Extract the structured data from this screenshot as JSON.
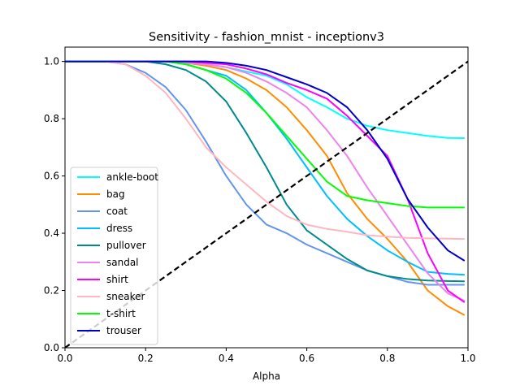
{
  "chart_data": {
    "type": "line",
    "title": "Sensitivity - fashion_mnist - inceptionv3",
    "xlabel": "Alpha",
    "ylabel": "",
    "xlim": [
      0,
      1
    ],
    "ylim": [
      0,
      1.05
    ],
    "xticks": [
      "0.0",
      "0.2",
      "0.4",
      "0.6",
      "0.8",
      "1.0"
    ],
    "yticks": [
      "0.0",
      "0.2",
      "0.4",
      "0.6",
      "0.8",
      "1.0"
    ],
    "grid": false,
    "legend_position": "lower-left",
    "x": [
      0.0,
      0.05,
      0.1,
      0.15,
      0.2,
      0.25,
      0.3,
      0.35,
      0.4,
      0.45,
      0.5,
      0.55,
      0.6,
      0.65,
      0.7,
      0.75,
      0.8,
      0.85,
      0.9,
      0.95,
      0.99
    ],
    "series": [
      {
        "name": "ankle-boot",
        "color": "#00ffff",
        "values": [
          1.0,
          1.0,
          1.0,
          1.0,
          1.0,
          1.0,
          0.995,
          0.99,
          0.98,
          0.965,
          0.95,
          0.92,
          0.875,
          0.84,
          0.8,
          0.775,
          0.76,
          0.75,
          0.74,
          0.733,
          0.732
        ]
      },
      {
        "name": "bag",
        "color": "#ff8c00",
        "values": [
          1.0,
          1.0,
          1.0,
          1.0,
          1.0,
          1.0,
          0.995,
          0.985,
          0.97,
          0.94,
          0.9,
          0.84,
          0.76,
          0.67,
          0.54,
          0.45,
          0.38,
          0.3,
          0.2,
          0.145,
          0.115
        ]
      },
      {
        "name": "coat",
        "color": "#6495ed",
        "values": [
          1.0,
          1.0,
          1.0,
          0.99,
          0.96,
          0.91,
          0.83,
          0.72,
          0.6,
          0.5,
          0.43,
          0.4,
          0.36,
          0.33,
          0.3,
          0.27,
          0.25,
          0.23,
          0.22,
          0.22,
          0.22
        ]
      },
      {
        "name": "dress",
        "color": "#00bfff",
        "values": [
          1.0,
          1.0,
          1.0,
          1.0,
          1.0,
          1.0,
          0.99,
          0.97,
          0.95,
          0.9,
          0.82,
          0.73,
          0.63,
          0.53,
          0.45,
          0.39,
          0.34,
          0.3,
          0.265,
          0.258,
          0.255
        ]
      },
      {
        "name": "pullover",
        "color": "#008b8b",
        "values": [
          1.0,
          1.0,
          1.0,
          1.0,
          1.0,
          0.99,
          0.97,
          0.93,
          0.86,
          0.75,
          0.63,
          0.5,
          0.41,
          0.36,
          0.31,
          0.27,
          0.25,
          0.24,
          0.235,
          0.233,
          0.232
        ]
      },
      {
        "name": "sandal",
        "color": "#ee82ee",
        "values": [
          1.0,
          1.0,
          1.0,
          1.0,
          1.0,
          1.0,
          0.995,
          0.99,
          0.98,
          0.96,
          0.93,
          0.89,
          0.84,
          0.76,
          0.67,
          0.56,
          0.46,
          0.36,
          0.26,
          0.19,
          0.165
        ]
      },
      {
        "name": "shirt",
        "color": "#ff00ff",
        "values": [
          1.0,
          1.0,
          1.0,
          1.0,
          1.0,
          1.0,
          1.0,
          0.995,
          0.99,
          0.975,
          0.955,
          0.925,
          0.9,
          0.87,
          0.81,
          0.74,
          0.67,
          0.52,
          0.33,
          0.2,
          0.16
        ]
      },
      {
        "name": "sneaker",
        "color": "#ffb6c1",
        "values": [
          1.0,
          1.0,
          1.0,
          0.99,
          0.95,
          0.89,
          0.8,
          0.7,
          0.63,
          0.57,
          0.51,
          0.46,
          0.43,
          0.415,
          0.405,
          0.393,
          0.388,
          0.384,
          0.382,
          0.381,
          0.38
        ]
      },
      {
        "name": "t-shirt",
        "color": "#00ff00",
        "values": [
          1.0,
          1.0,
          1.0,
          1.0,
          1.0,
          1.0,
          0.99,
          0.97,
          0.94,
          0.89,
          0.82,
          0.74,
          0.66,
          0.58,
          0.53,
          0.515,
          0.505,
          0.495,
          0.49,
          0.49,
          0.49
        ]
      },
      {
        "name": "trouser",
        "color": "#0000cd",
        "values": [
          1.0,
          1.0,
          1.0,
          1.0,
          1.0,
          1.0,
          1.0,
          1.0,
          0.995,
          0.985,
          0.97,
          0.945,
          0.92,
          0.89,
          0.84,
          0.76,
          0.66,
          0.52,
          0.42,
          0.34,
          0.305
        ]
      }
    ],
    "reference_line": {
      "x": [
        0,
        1
      ],
      "y": [
        0,
        1
      ],
      "color": "#000000",
      "style": "dashed"
    }
  }
}
